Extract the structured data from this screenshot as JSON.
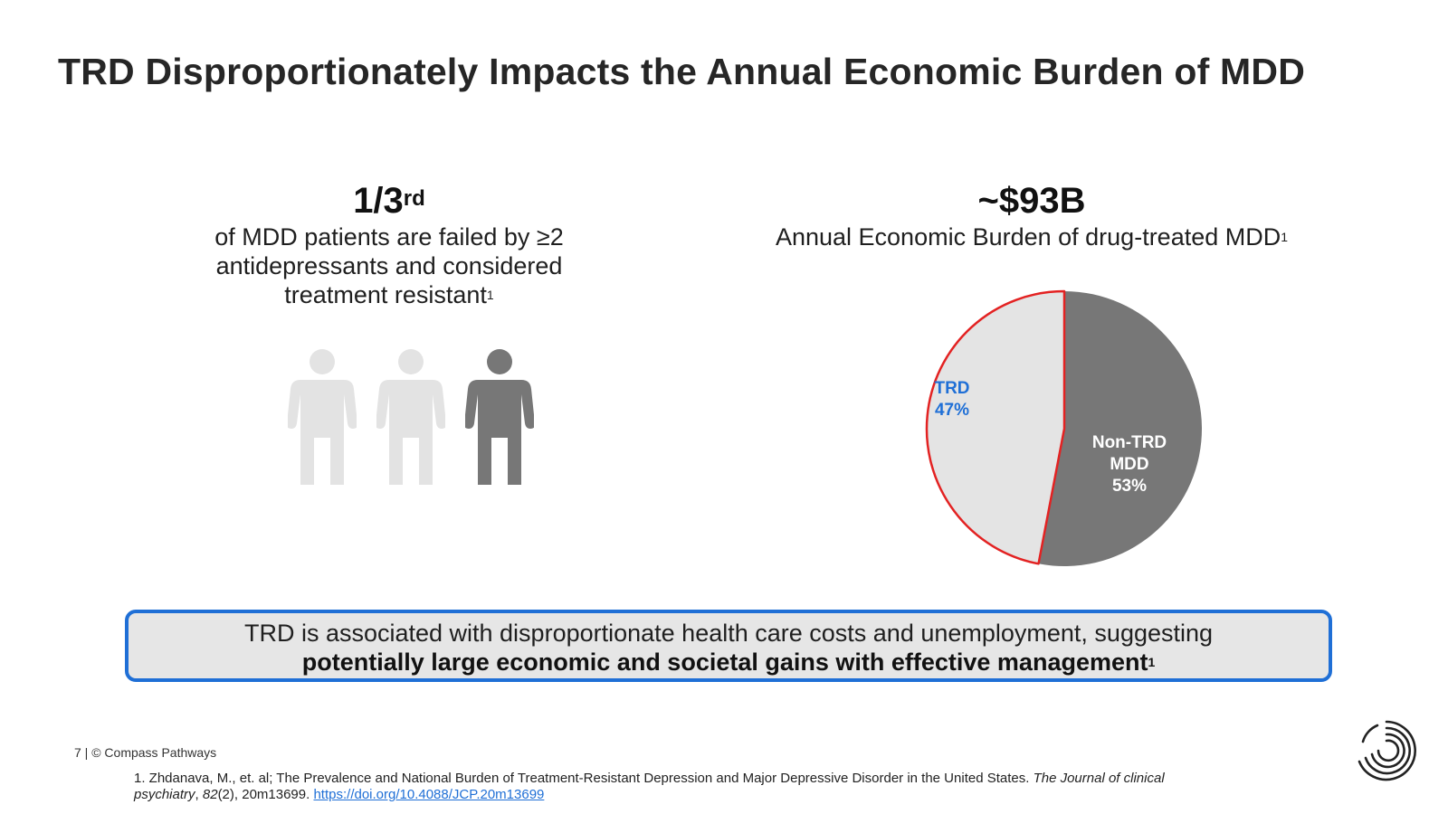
{
  "slide": {
    "title": "TRD Disproportionately Impacts the Annual Economic Burden of MDD",
    "page_number": "7",
    "copyright": "© Compass Pathways"
  },
  "left_stat": {
    "value": "1/3",
    "value_suffix": "rd",
    "description": "of MDD patients are failed by ≥2 antidepressants and considered treatment resistant",
    "footnote_ref": "1",
    "people_total": 3,
    "people_highlighted": 1,
    "colors": {
      "inactive": "#e3e3e3",
      "active": "#777777"
    }
  },
  "right_stat": {
    "value": "~$93B",
    "subtitle": "Annual Economic Burden of drug-treated MDD",
    "footnote_ref": "1"
  },
  "chart_data": {
    "type": "pie",
    "slices": [
      {
        "label": "TRD",
        "value": 47,
        "value_label": "47%",
        "color": "#e4e4e4",
        "outline": "#e32222",
        "label_color": "#1f6fd6"
      },
      {
        "label_lines": [
          "Non-TRD",
          "MDD"
        ],
        "value": 53,
        "value_label": "53%",
        "color": "#777777",
        "label_color": "#ffffff"
      }
    ]
  },
  "callout": {
    "line1": "TRD is associated with disproportionate health care costs and unemployment, suggesting",
    "line2_bold": "potentially large economic and societal gains with effective management",
    "footnote_ref": "1",
    "colors": {
      "border": "#1f6fd6",
      "background": "#e6e6e6"
    }
  },
  "footnote": {
    "text_before_italic": "1. Zhdanava, M., et. al; The Prevalence and National Burden of Treatment-Resistant Depression and Major Depressive Disorder in the United States. ",
    "journal_italic": "The Journal of clinical psychiatry",
    "volume_sep": ", ",
    "volume_italic": "82",
    "text_after": "(2), 20m13699. ",
    "link": "https://doi.org/10.4088/JCP.20m13699"
  },
  "logo": {
    "icon": "compass-pathways-logo"
  }
}
